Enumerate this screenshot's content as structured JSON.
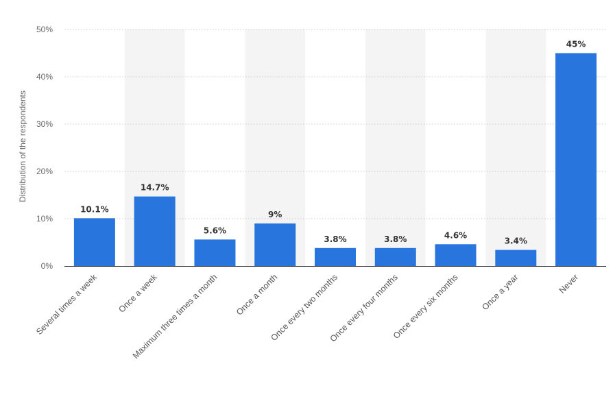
{
  "chart_data": {
    "type": "bar",
    "title": "",
    "xlabel": "",
    "ylabel": "Distribution of the respondents",
    "ylim": [
      0,
      50
    ],
    "yticks": [
      0,
      10,
      20,
      30,
      40,
      50
    ],
    "ytick_labels": [
      "0%",
      "10%",
      "20%",
      "30%",
      "40%",
      "50%"
    ],
    "grid": true,
    "categories": [
      "Several times a week",
      "Once a week",
      "Maximum three times a month",
      "Once a month",
      "Once every two months",
      "Once every four months",
      "Once every six months",
      "Once a year",
      "Never"
    ],
    "values": [
      10.1,
      14.7,
      5.6,
      9,
      3.8,
      3.8,
      4.6,
      3.4,
      45
    ],
    "value_labels": [
      "10.1%",
      "14.7%",
      "5.6%",
      "9%",
      "3.8%",
      "3.8%",
      "4.6%",
      "3.4%",
      "45%"
    ],
    "colors": {
      "bar": "#2876dd",
      "band": "#f4f4f4",
      "grid": "#c9c9c9",
      "axis": "#333333"
    }
  }
}
